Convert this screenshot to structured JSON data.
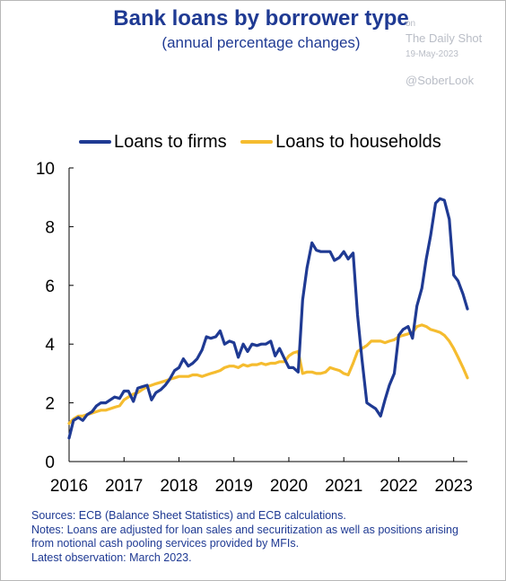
{
  "title": "Bank loans by borrower type",
  "subtitle": "(annual percentage changes)",
  "watermark": {
    "line1": "on",
    "line2": "The Daily Shot",
    "line3": "19-May-2023",
    "line4": "@SoberLook"
  },
  "notes": {
    "sources": "Sources: ECB (Balance Sheet Statistics) and ECB calculations.",
    "notes1": "Notes: Loans are adjusted for loan sales and securitization as well as positions arising",
    "notes2": "from notional cash pooling services provided by MFIs.",
    "latest": "Latest observation: March 2023."
  },
  "colors": {
    "firms": "#1f3a93",
    "households": "#f5bc2f",
    "axis": "#000000"
  },
  "chart_data": {
    "type": "line",
    "title": "Bank loans by borrower type",
    "subtitle": "(annual percentage changes)",
    "xlabel": "",
    "ylabel": "",
    "xlim": [
      2016.0,
      2023.25
    ],
    "ylim": [
      0,
      10
    ],
    "yticks": [
      0,
      2,
      4,
      6,
      8,
      10
    ],
    "xticks": [
      "2016",
      "2017",
      "2018",
      "2019",
      "2020",
      "2021",
      "2022",
      "2023"
    ],
    "grid": false,
    "legend": "top",
    "series": [
      {
        "name": "Loans to firms",
        "color": "#1f3a93",
        "x": [
          2016.0,
          2016.08,
          2016.17,
          2016.25,
          2016.33,
          2016.42,
          2016.5,
          2016.58,
          2016.67,
          2016.75,
          2016.83,
          2016.92,
          2017.0,
          2017.08,
          2017.17,
          2017.25,
          2017.33,
          2017.42,
          2017.5,
          2017.58,
          2017.67,
          2017.75,
          2017.83,
          2017.92,
          2018.0,
          2018.08,
          2018.17,
          2018.25,
          2018.33,
          2018.42,
          2018.5,
          2018.58,
          2018.67,
          2018.75,
          2018.83,
          2018.92,
          2019.0,
          2019.08,
          2019.17,
          2019.25,
          2019.33,
          2019.42,
          2019.5,
          2019.58,
          2019.67,
          2019.75,
          2019.83,
          2019.92,
          2020.0,
          2020.08,
          2020.17,
          2020.25,
          2020.33,
          2020.42,
          2020.5,
          2020.58,
          2020.67,
          2020.75,
          2020.83,
          2020.92,
          2021.0,
          2021.08,
          2021.17,
          2021.25,
          2021.33,
          2021.42,
          2021.5,
          2021.58,
          2021.67,
          2021.75,
          2021.83,
          2021.92,
          2022.0,
          2022.08,
          2022.17,
          2022.25,
          2022.33,
          2022.42,
          2022.5,
          2022.58,
          2022.67,
          2022.75,
          2022.83,
          2022.92,
          2023.0,
          2023.08,
          2023.17,
          2023.25
        ],
        "y": [
          0.8,
          1.4,
          1.5,
          1.4,
          1.6,
          1.7,
          1.9,
          2.0,
          2.0,
          2.1,
          2.2,
          2.15,
          2.4,
          2.4,
          2.05,
          2.5,
          2.55,
          2.6,
          2.1,
          2.35,
          2.45,
          2.6,
          2.8,
          3.1,
          3.2,
          3.5,
          3.25,
          3.35,
          3.5,
          3.8,
          4.25,
          4.2,
          4.25,
          4.45,
          4.0,
          4.1,
          4.05,
          3.55,
          4.0,
          3.75,
          4.0,
          3.95,
          4.0,
          4.0,
          4.1,
          3.6,
          3.85,
          3.5,
          3.2,
          3.2,
          3.05,
          5.5,
          6.6,
          7.45,
          7.2,
          7.15,
          7.15,
          7.15,
          6.85,
          6.95,
          7.15,
          6.9,
          7.1,
          5.0,
          3.5,
          2.0,
          1.9,
          1.8,
          1.55,
          2.1,
          2.6,
          3.0,
          4.3,
          4.5,
          4.6,
          4.2,
          5.3,
          5.9,
          6.9,
          7.7,
          8.8,
          8.95,
          8.9,
          8.25,
          6.35,
          6.15,
          5.7,
          5.2
        ]
      },
      {
        "name": "Loans to households",
        "color": "#f5bc2f",
        "x": [
          2016.0,
          2016.08,
          2016.17,
          2016.25,
          2016.33,
          2016.42,
          2016.5,
          2016.58,
          2016.67,
          2016.75,
          2016.83,
          2016.92,
          2017.0,
          2017.08,
          2017.17,
          2017.25,
          2017.33,
          2017.42,
          2017.5,
          2017.58,
          2017.67,
          2017.75,
          2017.83,
          2017.92,
          2018.0,
          2018.08,
          2018.17,
          2018.25,
          2018.33,
          2018.42,
          2018.5,
          2018.58,
          2018.67,
          2018.75,
          2018.83,
          2018.92,
          2019.0,
          2019.08,
          2019.17,
          2019.25,
          2019.33,
          2019.42,
          2019.5,
          2019.58,
          2019.67,
          2019.75,
          2019.83,
          2019.92,
          2020.0,
          2020.08,
          2020.17,
          2020.25,
          2020.33,
          2020.42,
          2020.5,
          2020.58,
          2020.67,
          2020.75,
          2020.83,
          2020.92,
          2021.0,
          2021.08,
          2021.17,
          2021.25,
          2021.33,
          2021.42,
          2021.5,
          2021.58,
          2021.67,
          2021.75,
          2021.83,
          2021.92,
          2022.0,
          2022.08,
          2022.17,
          2022.25,
          2022.33,
          2022.42,
          2022.5,
          2022.58,
          2022.67,
          2022.75,
          2022.83,
          2022.92,
          2023.0,
          2023.08,
          2023.17,
          2023.25
        ],
        "y": [
          1.3,
          1.45,
          1.55,
          1.55,
          1.6,
          1.65,
          1.7,
          1.75,
          1.75,
          1.8,
          1.85,
          1.9,
          2.1,
          2.2,
          2.3,
          2.35,
          2.45,
          2.55,
          2.6,
          2.65,
          2.7,
          2.75,
          2.8,
          2.85,
          2.9,
          2.9,
          2.9,
          2.95,
          2.95,
          2.9,
          2.95,
          3.0,
          3.05,
          3.1,
          3.2,
          3.25,
          3.25,
          3.2,
          3.3,
          3.25,
          3.3,
          3.3,
          3.35,
          3.3,
          3.35,
          3.35,
          3.4,
          3.4,
          3.6,
          3.7,
          3.75,
          3.0,
          3.05,
          3.05,
          3.0,
          3.0,
          3.05,
          3.2,
          3.15,
          3.1,
          3.0,
          2.95,
          3.35,
          3.75,
          3.85,
          3.95,
          4.1,
          4.1,
          4.1,
          4.05,
          4.1,
          4.15,
          4.25,
          4.3,
          4.35,
          4.4,
          4.6,
          4.65,
          4.6,
          4.5,
          4.45,
          4.4,
          4.3,
          4.1,
          3.85,
          3.55,
          3.2,
          2.85
        ]
      }
    ]
  }
}
